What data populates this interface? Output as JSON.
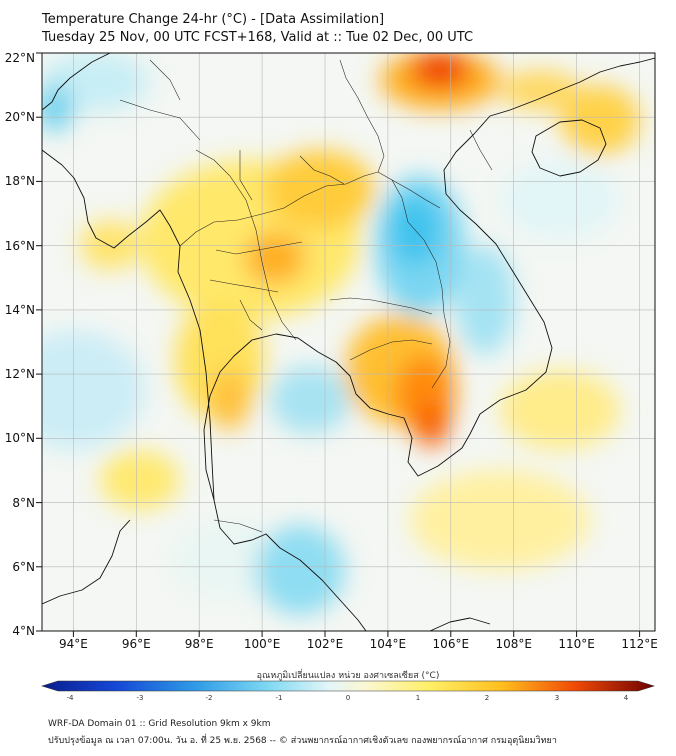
{
  "title": {
    "line1": "Temperature Change 24-hr (°C) - [Data Assimilation]",
    "line2": "Tuesday 25 Nov, 00 UTC FCST+168, Valid at :: Tue 02 Dec, 00 UTC"
  },
  "map": {
    "lat_range": [
      4,
      22
    ],
    "lon_range": [
      93,
      112.5
    ],
    "lat_ticks": [
      "4°N",
      "6°N",
      "8°N",
      "10°N",
      "12°N",
      "14°N",
      "16°N",
      "18°N",
      "20°N",
      "22°N"
    ],
    "lon_ticks": [
      "94°E",
      "96°E",
      "98°E",
      "100°E",
      "102°E",
      "104°E",
      "106°E",
      "108°E",
      "110°E",
      "112°E"
    ],
    "gridlines": true
  },
  "colorbar": {
    "label": "อุณหภูมิเปลี่ยนแปลง หน่วย องศาเซลเซียส (°C)",
    "ticks": [
      "-4",
      "-3",
      "-2",
      "-1",
      "0",
      "1",
      "2",
      "3",
      "4"
    ],
    "min": -4,
    "max": 4
  },
  "footer": {
    "line1": "WRF-DA Domain 01 :: Grid Resolution 9km x 9km",
    "line2": "ปรับปรุงข้อมูล ณ เวลา 07:00น. วัน อ. ที่ 25 พ.ย. 2568 -- © ส่วนพยากรณ์อากาศเชิงตัวเลข กองพยากรณ์อากาศ กรมอุตุนิยมวิทยา"
  },
  "colors": {
    "warm_strong": "#e62200",
    "warm_mid": "#ff9a00",
    "warm_light": "#ffe34d",
    "neutral": "#f3f7f7",
    "cool_light": "#a9e8f2",
    "cool_mid": "#34c4ec",
    "coastline": "#111111",
    "grid": "#b8b8b8"
  }
}
